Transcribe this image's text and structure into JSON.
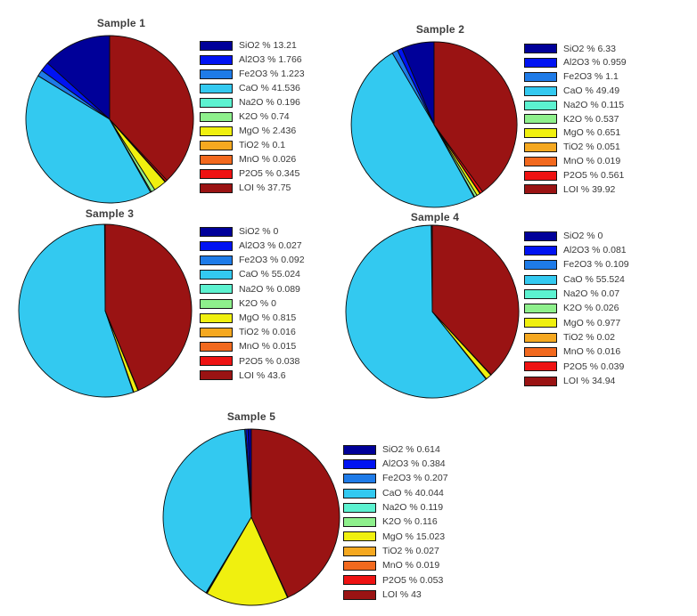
{
  "figure": {
    "background": "#ffffff",
    "description": "Five pie charts of oxide composition percentages for Samples 1-5"
  },
  "palette": {
    "SiO2": "#000099",
    "Al2O3": "#0013F2",
    "Fe2O3": "#1E7BE8",
    "CaO": "#33C9F0",
    "Na2O": "#5CF2D0",
    "K2O": "#8EF08C",
    "MgO": "#F0F00F",
    "TiO2": "#F5A820",
    "MnO": "#F2691E",
    "P2O5": "#EE1212",
    "LOI": "#9A1313"
  },
  "chart_data": [
    {
      "type": "pie",
      "title": "Sample 1",
      "categories": [
        "SiO2",
        "Al2O3",
        "Fe2O3",
        "CaO",
        "Na2O",
        "K2O",
        "MgO",
        "TiO2",
        "MnO",
        "P2O5",
        "LOI"
      ],
      "values": [
        13.21,
        1.766,
        1.223,
        41.536,
        0.196,
        0.74,
        2.436,
        0.1,
        0.026,
        0.345,
        37.75
      ],
      "legend_entries": [
        "SiO2 % 13.21",
        "Al2O3 % 1.766",
        "Fe2O3 % 1.223",
        "CaO % 41.536",
        "Na2O % 0.196",
        "K2O % 0.74",
        "MgO % 2.436",
        "TiO2 % 0.1",
        "MnO % 0.026",
        "P2O5 % 0.345",
        "LOI % 37.75"
      ],
      "legend_position": "right",
      "start_angle_deg": 90,
      "direction": "counterclockwise"
    },
    {
      "type": "pie",
      "title": "Sample 2",
      "categories": [
        "SiO2",
        "Al2O3",
        "Fe2O3",
        "CaO",
        "Na2O",
        "K2O",
        "MgO",
        "TiO2",
        "MnO",
        "P2O5",
        "LOI"
      ],
      "values": [
        6.33,
        0.959,
        1.1,
        49.49,
        0.115,
        0.537,
        0.651,
        0.051,
        0.019,
        0.561,
        39.92
      ],
      "legend_entries": [
        "SiO2 % 6.33",
        "Al2O3 % 0.959",
        "Fe2O3 % 1.1",
        "CaO % 49.49",
        "Na2O % 0.115",
        "K2O % 0.537",
        "MgO % 0.651",
        "TiO2 % 0.051",
        "MnO % 0.019",
        "P2O5 % 0.561",
        "LOI % 39.92"
      ],
      "legend_position": "right",
      "start_angle_deg": 90,
      "direction": "counterclockwise"
    },
    {
      "type": "pie",
      "title": "Sample 3",
      "categories": [
        "SiO2",
        "Al2O3",
        "Fe2O3",
        "CaO",
        "Na2O",
        "K2O",
        "MgO",
        "TiO2",
        "MnO",
        "P2O5",
        "LOI"
      ],
      "values": [
        0,
        0.027,
        0.092,
        55.024,
        0.089,
        0,
        0.815,
        0.016,
        0.015,
        0.038,
        43.6
      ],
      "legend_entries": [
        "SiO2 % 0",
        "Al2O3 % 0.027",
        "Fe2O3 % 0.092",
        "CaO % 55.024",
        "Na2O % 0.089",
        "K2O % 0",
        "MgO % 0.815",
        "TiO2 % 0.016",
        "MnO % 0.015",
        "P2O5 % 0.038",
        "LOI % 43.6"
      ],
      "legend_position": "right",
      "start_angle_deg": 90,
      "direction": "counterclockwise"
    },
    {
      "type": "pie",
      "title": "Sample 4",
      "categories": [
        "SiO2",
        "Al2O3",
        "Fe2O3",
        "CaO",
        "Na2O",
        "K2O",
        "MgO",
        "TiO2",
        "MnO",
        "P2O5",
        "LOI"
      ],
      "values": [
        0,
        0.081,
        0.109,
        55.524,
        0.07,
        0.026,
        0.977,
        0.02,
        0.016,
        0.039,
        34.94
      ],
      "legend_entries": [
        "SiO2 % 0",
        "Al2O3 % 0.081",
        "Fe2O3 % 0.109",
        "CaO % 55.524",
        "Na2O % 0.07",
        "K2O % 0.026",
        "MgO % 0.977",
        "TiO2 % 0.02",
        "MnO % 0.016",
        "P2O5 % 0.039",
        "LOI % 34.94"
      ],
      "legend_position": "right",
      "start_angle_deg": 90,
      "direction": "counterclockwise"
    },
    {
      "type": "pie",
      "title": "Sample 5",
      "categories": [
        "SiO2",
        "Al2O3",
        "Fe2O3",
        "CaO",
        "Na2O",
        "K2O",
        "MgO",
        "TiO2",
        "MnO",
        "P2O5",
        "LOI"
      ],
      "values": [
        0.614,
        0.384,
        0.207,
        40.044,
        0.119,
        0.116,
        15.023,
        0.027,
        0.019,
        0.053,
        43
      ],
      "legend_entries": [
        "SiO2 % 0.614",
        "Al2O3 % 0.384",
        "Fe2O3 % 0.207",
        "CaO % 40.044",
        "Na2O % 0.119",
        "K2O % 0.116",
        "MgO % 15.023",
        "TiO2 % 0.027",
        "MnO % 0.019",
        "P2O5 % 0.053",
        "LOI % 43"
      ],
      "legend_position": "right",
      "start_angle_deg": 90,
      "direction": "counterclockwise"
    }
  ]
}
